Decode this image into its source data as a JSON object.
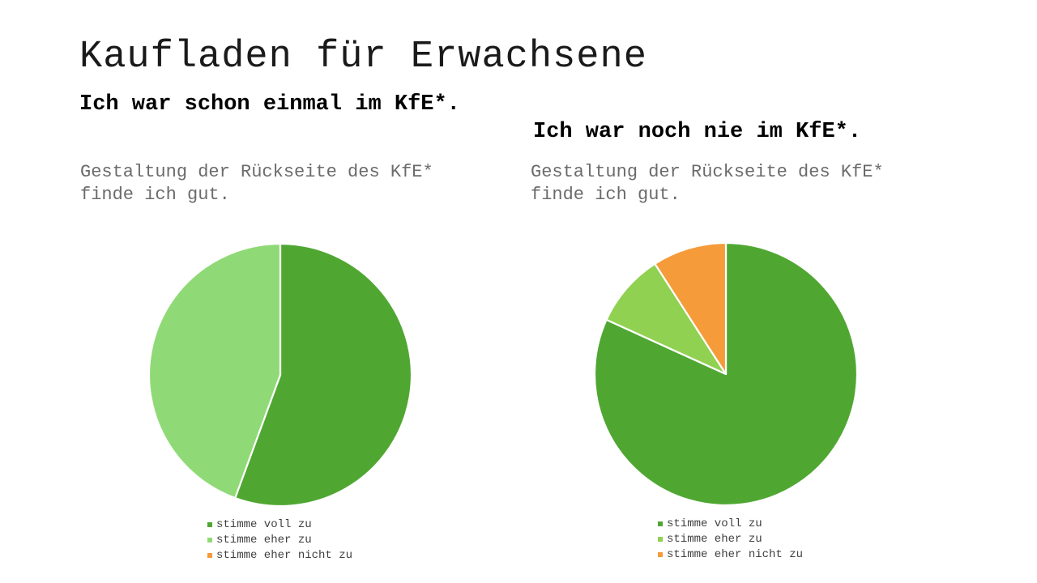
{
  "slide": {
    "title": "Kaufladen für Erwachsene"
  },
  "groups": [
    {
      "heading": "Ich war schon einmal im KfE*.",
      "question": "Gestaltung der Rückseite des KfE*\nfinde ich gut."
    },
    {
      "heading": "Ich war noch nie im KfE*.",
      "question": "Gestaltung der Rückseite des KfE*\nfinde ich gut."
    }
  ],
  "chart_data": [
    {
      "type": "pie",
      "title": "Gestaltung der Rückseite des KfE* finde ich gut.",
      "categories": [
        "stimme voll zu",
        "stimme eher zu",
        "stimme eher nicht zu"
      ],
      "values": [
        55.6,
        44.4,
        0
      ],
      "colors": [
        "#4fa732",
        "#8fda76",
        "#f59b3a"
      ],
      "start": "12 o'clock",
      "direction": "clockwise",
      "legend_position": "bottom"
    },
    {
      "type": "pie",
      "title": "Gestaltung der Rückseite des KfE* finde ich gut.",
      "categories": [
        "stimme voll zu",
        "stimme eher zu",
        "stimme eher nicht zu"
      ],
      "values": [
        81.8,
        9.1,
        9.1
      ],
      "colors": [
        "#4fa732",
        "#91d152",
        "#f59b3a"
      ],
      "start": "12 o'clock",
      "direction": "clockwise",
      "legend_position": "bottom"
    }
  ]
}
